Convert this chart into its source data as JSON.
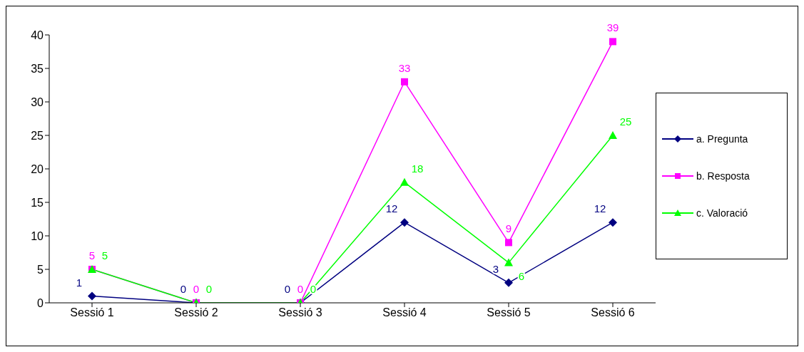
{
  "chart_data": {
    "type": "line",
    "categories": [
      "Sessió 1",
      "Sessió 2",
      "Sessió 3",
      "Sessió 4",
      "Sessió 5",
      "Sessió 6"
    ],
    "series": [
      {
        "name": "a. Pregunta",
        "color": "#000080",
        "marker": "diamond",
        "values": [
          1,
          0,
          0,
          12,
          3,
          12
        ]
      },
      {
        "name": "b. Resposta",
        "color": "#ff00ff",
        "marker": "square",
        "values": [
          5,
          0,
          0,
          33,
          9,
          39
        ]
      },
      {
        "name": "c. Valoració",
        "color": "#00ff00",
        "marker": "triangle",
        "values": [
          5,
          0,
          0,
          18,
          6,
          25
        ]
      }
    ],
    "ylim": [
      0,
      40
    ],
    "yticks": [
      0,
      5,
      10,
      15,
      20,
      25,
      30,
      35,
      40
    ],
    "grid": false,
    "legend": "right",
    "data_labels": true
  }
}
